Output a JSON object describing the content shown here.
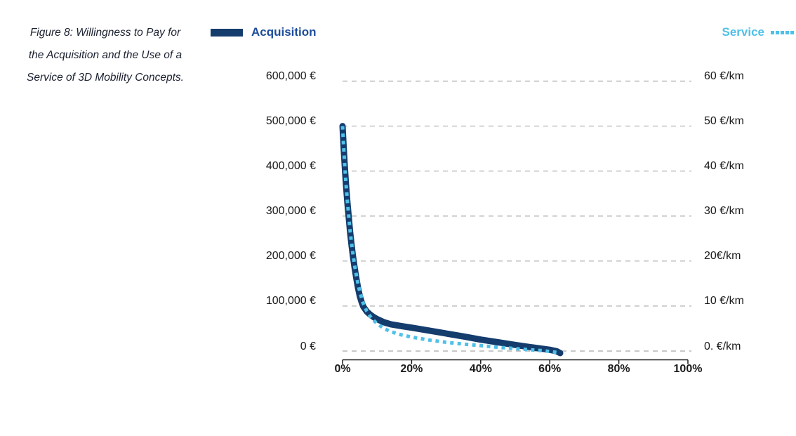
{
  "figure_caption": {
    "lines": [
      "Figure 8: Willingness to Pay for",
      "the Acquisition and the Use of a",
      "Service of 3D Mobility Concepts."
    ]
  },
  "legend": {
    "acquisition_label": "Acquisition",
    "service_label": "Service"
  },
  "colors": {
    "acquisition_line": "#143c6d",
    "acquisition_text": "#1d4d9a",
    "service": "#4fc0e8",
    "gridline": "#a8a8a8",
    "axis_line": "#1a1a1a",
    "axis_text": "#1a1a1a",
    "caption_text": "#1b2130"
  },
  "chart_data": {
    "type": "line",
    "title": "",
    "grid": "horizontal-dashed",
    "legend_position": "top",
    "x_axis": {
      "min": 0,
      "max": 100,
      "tick_labels": [
        "0%",
        "20%",
        "40%",
        "60%",
        "80%",
        "100%"
      ]
    },
    "left_axis": {
      "min": 0,
      "max": 600000,
      "tick_labels_top_to_bottom": [
        "600,000 €",
        "500,000 €",
        "400,000 €",
        "300,000 €",
        "200,000 €",
        "100,000 €",
        "0 €"
      ]
    },
    "right_axis": {
      "min": 0,
      "max": 60,
      "tick_labels_top_to_bottom": [
        "60 €/km",
        "50 €/km",
        "40 €/km",
        "30 €/km",
        "20€/km",
        "10 €/km",
        "0. €/km"
      ]
    },
    "series": [
      {
        "name": "Acquisition",
        "axis": "left",
        "style": "solid",
        "stroke_width": 9,
        "color": "#143c6d",
        "points": [
          [
            0,
            500000
          ],
          [
            0.3,
            455000
          ],
          [
            0.6,
            415000
          ],
          [
            1,
            370000
          ],
          [
            1.4,
            330000
          ],
          [
            1.8,
            296000
          ],
          [
            2.2,
            264000
          ],
          [
            2.6,
            236000
          ],
          [
            3,
            211000
          ],
          [
            3.5,
            185000
          ],
          [
            4,
            161000
          ],
          [
            4.5,
            140000
          ],
          [
            5,
            122000
          ],
          [
            5.5,
            109000
          ],
          [
            6,
            99000
          ],
          [
            7,
            88000
          ],
          [
            8,
            81000
          ],
          [
            9,
            75500
          ],
          [
            10,
            71000
          ],
          [
            12,
            64000
          ],
          [
            14,
            59500
          ],
          [
            17,
            55500
          ],
          [
            20,
            52000
          ],
          [
            25,
            45500
          ],
          [
            30,
            39000
          ],
          [
            35,
            32500
          ],
          [
            40,
            25500
          ],
          [
            45,
            19500
          ],
          [
            50,
            13500
          ],
          [
            54,
            9000
          ],
          [
            58,
            5000
          ],
          [
            60,
            2800
          ],
          [
            62,
            -500
          ],
          [
            63,
            -4500
          ]
        ]
      },
      {
        "name": "Service",
        "axis": "right",
        "style": "dotted",
        "stroke_width": 5,
        "color": "#4fc0e8",
        "points": [
          [
            0,
            50
          ],
          [
            0.3,
            45.5
          ],
          [
            0.6,
            41.5
          ],
          [
            1,
            37.2
          ],
          [
            1.4,
            33.3
          ],
          [
            1.8,
            29.8
          ],
          [
            2.2,
            26.7
          ],
          [
            2.6,
            24
          ],
          [
            3,
            21.6
          ],
          [
            3.5,
            19
          ],
          [
            4,
            16.8
          ],
          [
            4.5,
            14.9
          ],
          [
            5,
            13.2
          ],
          [
            5.5,
            11.8
          ],
          [
            6,
            10.6
          ],
          [
            6.5,
            9.7
          ],
          [
            7,
            8.9
          ],
          [
            8,
            7.7
          ],
          [
            9,
            6.8
          ],
          [
            10,
            6.1
          ],
          [
            12,
            5.0
          ],
          [
            14,
            4.3
          ],
          [
            17,
            3.6
          ],
          [
            20,
            3.1
          ],
          [
            25,
            2.45
          ],
          [
            30,
            1.95
          ],
          [
            35,
            1.55
          ],
          [
            40,
            1.2
          ],
          [
            45,
            0.85
          ],
          [
            50,
            0.55
          ],
          [
            54,
            0.3
          ],
          [
            58,
            0.08
          ],
          [
            60,
            -0.1
          ],
          [
            62,
            -0.3
          ]
        ]
      }
    ]
  }
}
